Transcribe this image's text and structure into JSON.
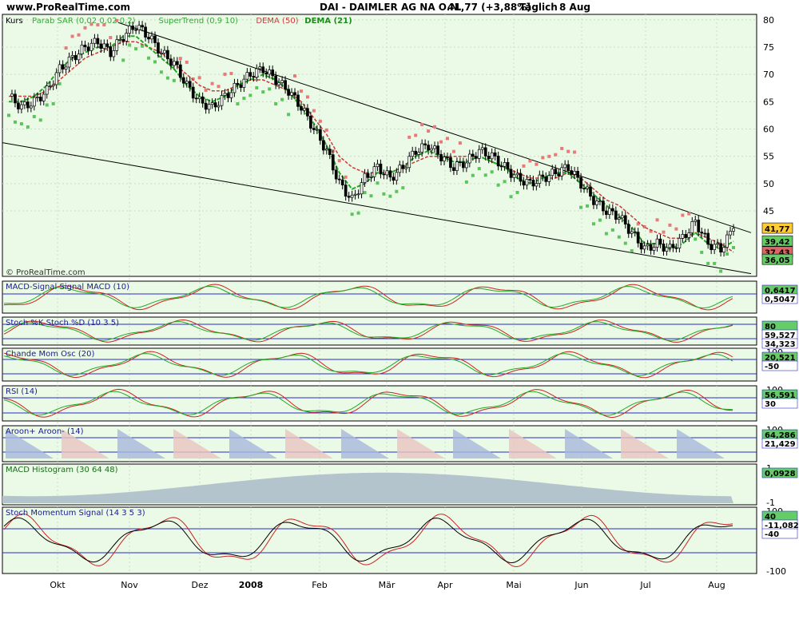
{
  "header": {
    "site": "www.ProRealTime.com",
    "instrument": "DAI - DAIMLER AG NA O.N.",
    "quote": "41,77 (+3,88%)",
    "period": "Täglich",
    "date": "8 Aug"
  },
  "colors": {
    "bg": "#ebfae6",
    "grid": "#c8dcc8",
    "price_up": "#ffffff",
    "price_line": "#000000",
    "sar": "#e87a7a",
    "supertrend": "#3aa83a",
    "dema50": "#c83c3c",
    "dema21": "#22a822",
    "hline": "#2a2acc"
  },
  "chart_data": [
    {
      "type": "line",
      "title": "Kurs",
      "legend": [
        "Parab SAR (0,02 0,02 0,2)",
        "SuperTrend (0,9 10)",
        "DEMA (50)",
        "DEMA (21)"
      ],
      "x_labels": [
        "Okt",
        "Nov",
        "Dez",
        "2008",
        "Feb",
        "Mär",
        "Apr",
        "Mai",
        "Jun",
        "Jul",
        "Aug"
      ],
      "y_ticks": [
        45,
        50,
        55,
        60,
        65,
        70,
        75,
        80
      ],
      "ylim": [
        33,
        81
      ],
      "series": [
        {
          "name": "Kurs",
          "values": [
            66,
            64,
            65,
            67,
            71,
            73,
            75,
            76,
            74,
            77,
            79,
            77,
            74,
            72,
            68,
            65,
            64,
            66,
            68,
            70,
            71,
            69,
            67,
            64,
            60,
            56,
            50,
            47,
            51,
            53,
            51,
            53,
            56,
            57,
            55,
            53,
            54,
            56,
            55,
            53,
            51,
            50,
            51,
            52,
            53,
            50,
            47,
            45,
            44,
            41,
            38,
            39,
            38,
            40,
            43,
            39,
            38,
            41.77
          ]
        },
        {
          "name": "DEMA (50)",
          "values": [
            66,
            66,
            66,
            67,
            69,
            71,
            73,
            74,
            75,
            76,
            76,
            75,
            74,
            72,
            70,
            68,
            67,
            67,
            68,
            69,
            69,
            68,
            67,
            65,
            62,
            59,
            55,
            53,
            52,
            52,
            52,
            53,
            54,
            55,
            55,
            55,
            55,
            55,
            54,
            53,
            52,
            51,
            51,
            51,
            52,
            51,
            49,
            47,
            46,
            44,
            42,
            41,
            40,
            40,
            41,
            40,
            39,
            37.43
          ]
        },
        {
          "name": "DEMA (21)",
          "values": [
            65,
            65,
            66,
            68,
            71,
            73,
            74,
            75,
            75,
            77,
            77,
            75,
            73,
            71,
            68,
            66,
            65,
            66,
            68,
            69,
            70,
            69,
            67,
            64,
            61,
            57,
            52,
            49,
            50,
            52,
            52,
            53,
            55,
            56,
            55,
            54,
            54,
            55,
            54,
            53,
            51,
            50,
            51,
            52,
            52,
            50,
            48,
            46,
            44,
            42,
            39,
            39,
            38,
            39,
            41,
            39,
            38,
            39.42
          ]
        }
      ],
      "value_badges": [
        "41,77",
        "39,42",
        "37,43",
        "36,05"
      ]
    },
    {
      "type": "area",
      "title": "MACD-Signal Signal MACD (10)",
      "value_badges": [
        "0,6417",
        "0,5047"
      ]
    },
    {
      "type": "area",
      "title": "Stoch %K Stoch %D (10 3 5)",
      "value_badges": [
        "80",
        "59,527",
        "34,323"
      ]
    },
    {
      "type": "line",
      "title": "Chande Mom Osc (20)",
      "y_ticks": [
        100
      ],
      "value_badges": [
        "20,521",
        "-50"
      ]
    },
    {
      "type": "line",
      "title": "RSI (14)",
      "y_ticks": [
        100
      ],
      "value_badges": [
        "56,591",
        "30"
      ]
    },
    {
      "type": "area",
      "title": "Aroon+ Aroon- (14)",
      "y_ticks": [
        100
      ],
      "value_badges": [
        "64,286",
        "21,429"
      ]
    },
    {
      "type": "area",
      "title": "MACD Histogram (30 64 48)",
      "y_ticks": [
        1,
        -1
      ],
      "value_badges": [
        "0,0928"
      ]
    },
    {
      "type": "line",
      "title": "Stoch Momentum",
      "signal": "Signal (14 3 5 3)",
      "y_ticks": [
        100,
        -100
      ],
      "value_badges": [
        "40",
        "-11,082",
        "-40"
      ]
    }
  ],
  "footer": {
    "watermark": "© ProRealTime.com"
  }
}
